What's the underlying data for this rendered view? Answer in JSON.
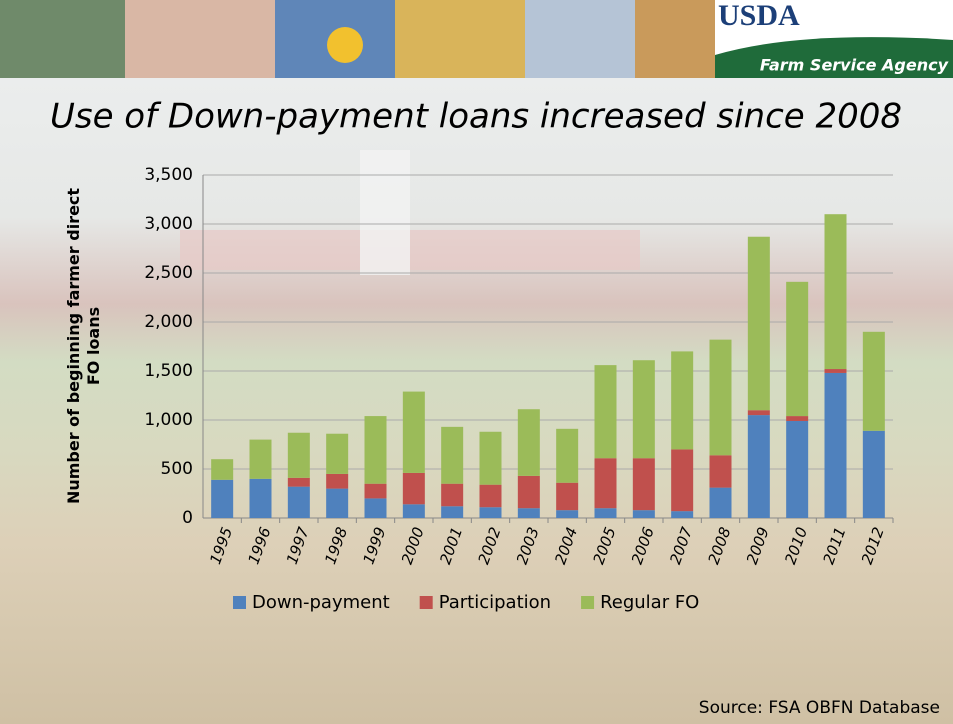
{
  "header": {
    "logo": "USDA",
    "agency": "Farm Service Agency"
  },
  "chart_data": {
    "type": "stacked_bar",
    "title": "Use of Down-payment loans increased since 2008",
    "y_label": "Number of beginning farmer direct FO loans",
    "categories": [
      "1995",
      "1996",
      "1997",
      "1998",
      "1999",
      "2000",
      "2001",
      "2002",
      "2003",
      "2004",
      "2005",
      "2006",
      "2007",
      "2008",
      "2009",
      "2010",
      "2011",
      "2012"
    ],
    "series": [
      {
        "name": "Down-payment",
        "color": "#4f81bd",
        "values": [
          390,
          400,
          320,
          300,
          200,
          140,
          120,
          110,
          100,
          80,
          100,
          80,
          70,
          310,
          1050,
          990,
          1480,
          890
        ]
      },
      {
        "name": "Participation",
        "color": "#c0504d",
        "values": [
          0,
          0,
          90,
          150,
          150,
          320,
          230,
          230,
          330,
          280,
          510,
          530,
          630,
          330,
          50,
          50,
          40,
          0
        ]
      },
      {
        "name": "Regular FO",
        "color": "#9bbb59",
        "values": [
          210,
          400,
          460,
          410,
          690,
          830,
          580,
          540,
          680,
          550,
          950,
          1000,
          1000,
          1180,
          1770,
          1370,
          1580,
          1010
        ]
      }
    ],
    "ylim": [
      0,
      3500
    ],
    "yticks": [
      0,
      500,
      {
        "value": 1000,
        "label": "1,000"
      },
      {
        "value": 1500,
        "label": "1,500"
      },
      {
        "value": 2000,
        "label": "2,000"
      },
      {
        "value": 2500,
        "label": "2,500"
      },
      {
        "value": 3000,
        "label": "3,000"
      },
      {
        "value": 3500,
        "label": "3,500"
      }
    ],
    "grid": true,
    "source": "Source: FSA OBFN Database"
  }
}
